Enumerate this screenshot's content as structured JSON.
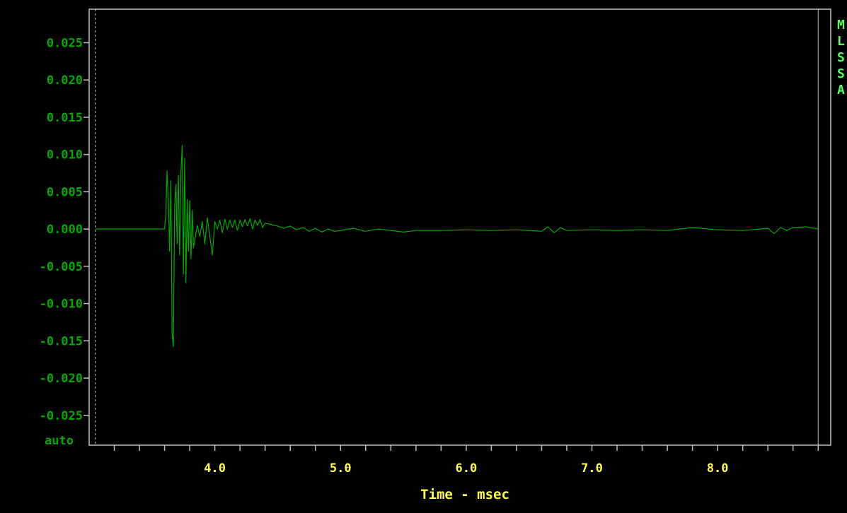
{
  "chart_data": {
    "type": "line",
    "xlabel": "Time - msec",
    "ylabel": "",
    "title": "",
    "ylim": [
      -0.029,
      0.0295
    ],
    "xlim": [
      3.0,
      8.9
    ],
    "x_ticks": [
      4.0,
      5.0,
      6.0,
      7.0,
      8.0
    ],
    "x_tick_labels": [
      "4.0",
      "5.0",
      "6.0",
      "7.0",
      "8.0"
    ],
    "x_minor_tick_step": 0.2,
    "y_ticks": [
      0.025,
      0.02,
      0.015,
      0.01,
      0.005,
      0.0,
      -0.005,
      -0.01,
      -0.015,
      -0.02,
      -0.025
    ],
    "y_tick_labels": [
      "0.025",
      "0.020",
      "0.015",
      "0.010",
      "0.005",
      "0.000",
      "-0.005",
      "-0.010",
      "-0.015",
      "-0.020",
      "-0.025"
    ],
    "y_scale_label": "auto",
    "grid": false,
    "cursor_lines_x": [
      3.05,
      8.8
    ],
    "side_letters": [
      "M",
      "L",
      "S",
      "S",
      "A"
    ],
    "series": [
      {
        "color": "#00a800",
        "x": [
          3.05,
          3.6,
          3.61,
          3.62,
          3.63,
          3.64,
          3.65,
          3.66,
          3.67,
          3.68,
          3.69,
          3.7,
          3.71,
          3.72,
          3.73,
          3.74,
          3.75,
          3.76,
          3.77,
          3.78,
          3.79,
          3.8,
          3.81,
          3.82,
          3.83,
          3.84,
          3.86,
          3.88,
          3.9,
          3.92,
          3.94,
          3.96,
          3.98,
          4.0,
          4.02,
          4.04,
          4.06,
          4.08,
          4.1,
          4.12,
          4.14,
          4.16,
          4.18,
          4.2,
          4.22,
          4.24,
          4.26,
          4.28,
          4.3,
          4.32,
          4.34,
          4.36,
          4.38,
          4.4,
          4.45,
          4.5,
          4.55,
          4.6,
          4.65,
          4.7,
          4.75,
          4.8,
          4.85,
          4.9,
          4.95,
          5.0,
          5.1,
          5.2,
          5.3,
          5.4,
          5.5,
          5.6,
          5.8,
          6.0,
          6.2,
          6.4,
          6.6,
          6.65,
          6.7,
          6.75,
          6.8,
          7.0,
          7.2,
          7.4,
          7.6,
          7.8,
          8.0,
          8.2,
          8.4,
          8.45,
          8.5,
          8.55,
          8.6,
          8.7,
          8.8
        ],
        "values": [
          0.0,
          0.0,
          0.002,
          0.0078,
          0.004,
          -0.003,
          0.0065,
          -0.014,
          -0.0158,
          0.003,
          0.006,
          -0.002,
          0.0072,
          -0.0035,
          0.0075,
          0.0112,
          -0.006,
          0.0095,
          -0.0072,
          0.004,
          -0.003,
          0.0038,
          -0.004,
          0.0025,
          -0.0025,
          -0.0015,
          0.0005,
          -0.001,
          0.001,
          -0.002,
          0.0015,
          -0.001,
          -0.0035,
          0.001,
          0.0,
          0.0012,
          -0.0005,
          0.0013,
          0.0,
          0.0012,
          0.0002,
          0.0012,
          -0.0002,
          0.0012,
          0.0003,
          0.0013,
          0.0004,
          0.0014,
          0.0,
          0.0012,
          0.0005,
          0.0013,
          0.0002,
          0.0008,
          0.0006,
          0.0004,
          0.0001,
          0.0004,
          -0.0001,
          0.0002,
          -0.0003,
          0.0001,
          -0.0004,
          0.0,
          -0.0003,
          -0.0002,
          0.0001,
          -0.0003,
          0.0,
          -0.0002,
          -0.0004,
          -0.0002,
          -0.0002,
          -0.0001,
          -0.0002,
          -0.0001,
          -0.0003,
          0.0003,
          -0.0005,
          0.0002,
          -0.0002,
          -0.0001,
          -0.0002,
          -0.0001,
          -0.0002,
          0.0002,
          -0.0001,
          -0.0002,
          0.0001,
          -0.0006,
          0.0002,
          -0.0002,
          0.0002,
          0.0003,
          0.0
        ]
      }
    ]
  }
}
